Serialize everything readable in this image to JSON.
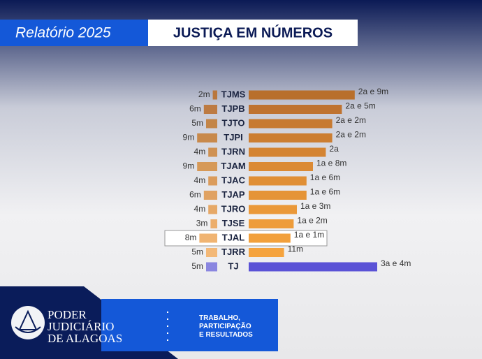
{
  "header": {
    "tag": "Relatório 2025",
    "title": "JUSTIÇA EM NÚMEROS"
  },
  "chart_data": {
    "type": "bar",
    "categories": [
      "TJMS",
      "TJPB",
      "TJTO",
      "TJPI",
      "TJRN",
      "TJAM",
      "TJAC",
      "TJAP",
      "TJRO",
      "TJSE",
      "TJAL",
      "TJRR",
      "TJ"
    ],
    "series": [
      {
        "side": "left",
        "values": [
          2,
          6,
          5,
          9,
          4,
          9,
          4,
          6,
          4,
          3,
          8,
          5,
          5
        ],
        "value_labels": [
          "2m",
          "6m",
          "5m",
          "9m",
          "4m",
          "9m",
          "4m",
          "6m",
          "4m",
          "3m",
          "8m",
          "5m",
          "5m"
        ],
        "colors": [
          "#b9773d",
          "#bd7b42",
          "#c38547",
          "#c8894b",
          "#cf9152",
          "#d69958",
          "#db9c5c",
          "#e0a262",
          "#e6a866",
          "#ecae6c",
          "#f0b472",
          "#f3b877",
          "#8a86e0"
        ]
      },
      {
        "side": "right",
        "values": [
          33,
          29,
          26,
          26,
          24,
          20,
          18,
          18,
          15,
          14,
          13,
          11,
          40
        ],
        "value_labels": [
          "2a e 9m",
          "2a e 5m",
          "2a e 2m",
          "2a e 2m",
          "2a",
          "1a e 8m",
          "1a e 6m",
          "1a e 6m",
          "1a e 3m",
          "1a e 2m",
          "1a e 1m",
          "11m",
          "3a e 4m"
        ],
        "colors": [
          "#b86f2c",
          "#bf7330",
          "#c77a31",
          "#cc7e32",
          "#d48433",
          "#db8a35",
          "#e08f36",
          "#e59437",
          "#ea9838",
          "#ee9c3a",
          "#f2a03c",
          "#f5a33e",
          "#5a52d6"
        ]
      }
    ],
    "highlight": 10
  },
  "footer": {
    "institution": [
      "PODER",
      "JUDICIÁRIO",
      "DE ALAGOAS"
    ],
    "motto": [
      "TRABALHO,",
      "PARTICIPAÇÃO",
      "E RESULTADOS"
    ]
  }
}
